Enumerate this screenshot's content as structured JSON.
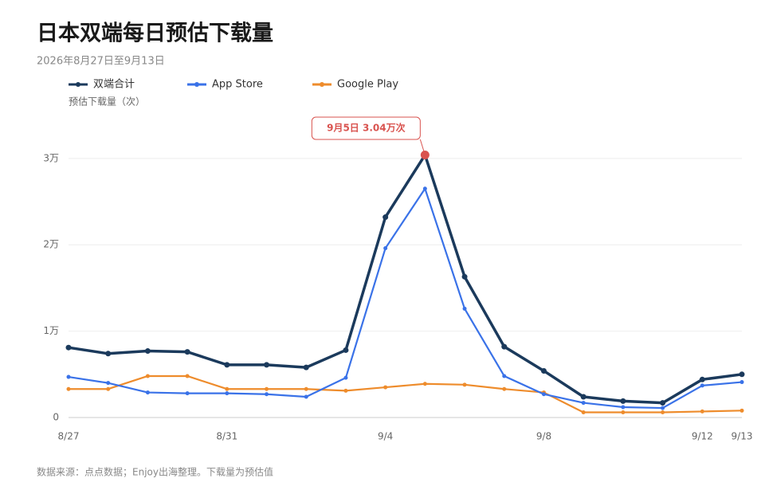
{
  "chart_data": {
    "type": "line",
    "title": "日本双端每日预估下载量",
    "subtitle": "2026年8月27日至9月13日",
    "y_label": "预估下载量（次）",
    "source": "数据来源：点点数据；Enjoy出海整理。下载量为预估值",
    "annotation": "9月5日 3.04万次",
    "categories": [
      "8/27",
      null,
      null,
      null,
      "8/31",
      null,
      null,
      null,
      "9/4",
      null,
      null,
      null,
      "9/8",
      null,
      null,
      null,
      "9/12",
      "9/13"
    ],
    "series": [
      {
        "name": "双端合计",
        "color": "#1b3a5c",
        "values": [
          0.81,
          0.74,
          0.77,
          0.76,
          0.61,
          0.61,
          0.58,
          0.78,
          2.32,
          3.04,
          1.63,
          0.82,
          0.54,
          0.24,
          0.19,
          0.17,
          0.44,
          0.5
        ]
      },
      {
        "name": "App Store",
        "color": "#3a72e8",
        "values": [
          0.47,
          0.4,
          0.29,
          0.28,
          0.28,
          0.27,
          0.24,
          0.46,
          1.96,
          2.65,
          1.26,
          0.48,
          0.27,
          0.17,
          0.12,
          0.11,
          0.37,
          0.41
        ]
      },
      {
        "name": "Google Play",
        "color": "#ee8c2c",
        "values": [
          0.33,
          0.33,
          0.48,
          0.48,
          0.33,
          0.33,
          0.33,
          0.31,
          0.35,
          0.39,
          0.38,
          0.33,
          0.29,
          0.06,
          0.06,
          0.06,
          0.07,
          0.08
        ]
      }
    ],
    "ylim": [
      0,
      3.1
    ],
    "yticks": [
      0,
      {
        "value": 1,
        "label": "1万"
      },
      {
        "value": 2,
        "label": "2万"
      },
      {
        "value": 3,
        "label": "3万"
      }
    ],
    "grid": true,
    "legend": "top-left"
  }
}
